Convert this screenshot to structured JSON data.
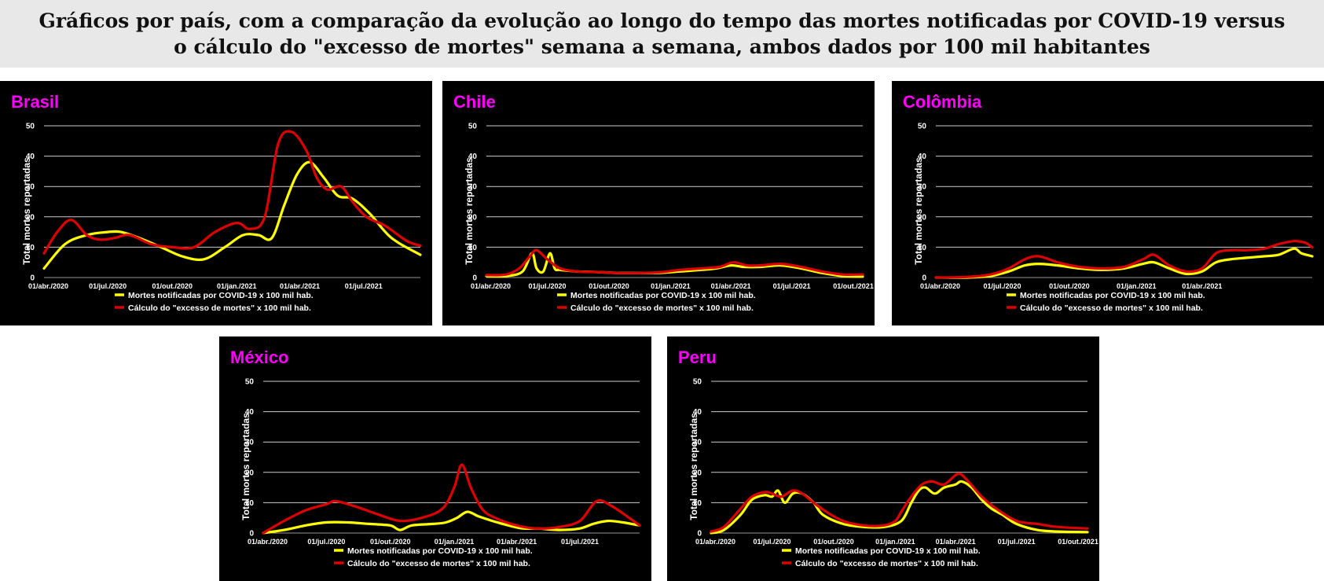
{
  "page": {
    "title_line1": "Gráficos por país, com a comparação da evolução ao longo do tempo das mortes notificadas por COVID-19 versus",
    "title_line2": "o cálculo do \"excesso de mortes\" semana a semana, ambos dados por 100 mil habitantes"
  },
  "colors": {
    "background": "#000000",
    "country_label": "#ff00ff",
    "reported": "#ffff00",
    "excess": "#dd0000",
    "text": "#ffffff",
    "grid": "#cccccc"
  },
  "chart_data": [
    {
      "type": "line",
      "title": "Brasil",
      "ylabel": "Total mortes reportadas",
      "ylim": [
        0,
        50
      ],
      "yticks": [
        0,
        10,
        20,
        30,
        40,
        50
      ],
      "xlim": [
        "2020-04-01",
        "2021-09-20"
      ],
      "xticks": [
        {
          "date": "2020-04-01",
          "label": "01/abr./2020"
        },
        {
          "date": "2020-07-01",
          "label": "01/jul./2020"
        },
        {
          "date": "2020-10-01",
          "label": "01/out./2020"
        },
        {
          "date": "2021-01-01",
          "label": "01/jan./2021"
        },
        {
          "date": "2021-04-01",
          "label": "01/abr./2021"
        },
        {
          "date": "2021-07-01",
          "label": "01/jul./2021"
        }
      ],
      "legend_position": "bottom",
      "series": [
        {
          "name": "Mortes notificadas por COVID-19 x 100 mil hab.",
          "color": "#ffff00",
          "x": [
            "2020-04-01",
            "2020-05-01",
            "2020-06-01",
            "2020-07-01",
            "2020-07-20",
            "2020-08-15",
            "2020-09-15",
            "2020-10-15",
            "2020-11-15",
            "2020-12-15",
            "2021-01-10",
            "2021-02-01",
            "2021-02-20",
            "2021-03-10",
            "2021-03-28",
            "2021-04-15",
            "2021-05-05",
            "2021-05-25",
            "2021-06-15",
            "2021-07-10",
            "2021-08-10",
            "2021-09-20"
          ],
          "y": [
            3,
            11,
            14,
            15,
            15,
            13,
            10,
            7,
            6,
            10,
            14,
            14,
            13,
            24,
            34,
            38,
            33,
            27,
            26,
            21,
            13,
            7.5
          ]
        },
        {
          "name": "Cálculo do \"excesso de mortes\" x 100 mil hab.",
          "color": "#dd0000",
          "x": [
            "2020-04-01",
            "2020-04-20",
            "2020-05-10",
            "2020-06-01",
            "2020-06-20",
            "2020-07-10",
            "2020-08-01",
            "2020-09-01",
            "2020-10-01",
            "2020-11-01",
            "2020-12-01",
            "2021-01-01",
            "2021-01-20",
            "2021-02-10",
            "2021-03-01",
            "2021-03-20",
            "2021-04-10",
            "2021-04-25",
            "2021-05-10",
            "2021-05-30",
            "2021-06-15",
            "2021-07-05",
            "2021-08-01",
            "2021-09-01",
            "2021-09-20"
          ],
          "y": [
            8,
            15,
            19,
            14,
            12.5,
            13,
            14,
            11,
            10,
            10,
            15,
            18,
            16,
            20,
            44,
            48,
            42,
            33,
            29,
            30,
            25,
            20,
            17,
            12,
            10.5
          ]
        }
      ]
    },
    {
      "type": "line",
      "title": "Chile",
      "ylabel": "Total mortes reportadas",
      "ylim": [
        0,
        50
      ],
      "yticks": [
        0,
        10,
        20,
        30,
        40,
        50
      ],
      "xlim": [
        "2020-04-01",
        "2021-10-15"
      ],
      "xticks": [
        {
          "date": "2020-04-01",
          "label": "01/abr./2020"
        },
        {
          "date": "2020-07-01",
          "label": "01/jul./2020"
        },
        {
          "date": "2020-10-01",
          "label": "01/out./2020"
        },
        {
          "date": "2021-01-01",
          "label": "01/jan./2021"
        },
        {
          "date": "2021-04-01",
          "label": "01/abr./2021"
        },
        {
          "date": "2021-07-01",
          "label": "01/jul./2021"
        },
        {
          "date": "2021-10-01",
          "label": "01/out./2021"
        }
      ],
      "legend_position": "bottom",
      "series": [
        {
          "name": "Mortes notificadas por COVID-19 x 100 mil hab.",
          "color": "#ffff00",
          "x": [
            "2020-04-01",
            "2020-05-01",
            "2020-05-25",
            "2020-06-08",
            "2020-06-15",
            "2020-06-25",
            "2020-07-05",
            "2020-07-12",
            "2020-07-20",
            "2020-08-15",
            "2020-09-15",
            "2020-10-15",
            "2020-11-15",
            "2020-12-15",
            "2021-01-15",
            "2021-02-15",
            "2021-03-10",
            "2021-04-01",
            "2021-04-20",
            "2021-05-15",
            "2021-06-15",
            "2021-07-15",
            "2021-08-15",
            "2021-09-15",
            "2021-10-15"
          ],
          "y": [
            0.5,
            0.5,
            2,
            8,
            3,
            2,
            8,
            3,
            2.5,
            2,
            1.8,
            1.5,
            1.5,
            1.5,
            2,
            2.5,
            3,
            4,
            3.5,
            3.5,
            4,
            3,
            1.5,
            0.5,
            0.3
          ]
        },
        {
          "name": "Cálculo do \"excesso de mortes\" x 100 mil hab.",
          "color": "#dd0000",
          "x": [
            "2020-04-01",
            "2020-05-01",
            "2020-05-20",
            "2020-06-05",
            "2020-06-15",
            "2020-07-01",
            "2020-07-20",
            "2020-08-15",
            "2020-09-15",
            "2020-10-15",
            "2020-11-15",
            "2020-12-15",
            "2021-01-15",
            "2021-02-15",
            "2021-03-15",
            "2021-04-05",
            "2021-04-25",
            "2021-05-15",
            "2021-06-15",
            "2021-07-15",
            "2021-08-15",
            "2021-09-15",
            "2021-10-15"
          ],
          "y": [
            0.8,
            1,
            3,
            7,
            9,
            6,
            3,
            2,
            1.8,
            1.5,
            1.5,
            1.7,
            2.5,
            3,
            3.5,
            5,
            4,
            4,
            4.5,
            3.5,
            2,
            1,
            1
          ]
        }
      ]
    },
    {
      "type": "line",
      "title": "Colômbia",
      "ylabel": "Total mortes reportadas",
      "ylim": [
        0,
        50
      ],
      "yticks": [
        0,
        10,
        20,
        30,
        40,
        50
      ],
      "xlim": [
        "2020-04-01",
        "2021-08-30"
      ],
      "xticks": [
        {
          "date": "2020-04-01",
          "label": "01/abr./2020"
        },
        {
          "date": "2020-07-01",
          "label": "01/jul./2020"
        },
        {
          "date": "2020-10-01",
          "label": "01/out./2020"
        },
        {
          "date": "2021-01-01",
          "label": "01/jan./2021"
        },
        {
          "date": "2021-04-01",
          "label": "01/abr./2021"
        }
      ],
      "legend_position": "bottom",
      "series": [
        {
          "name": "Mortes notificadas por COVID-19 x 100 mil hab.",
          "color": "#ffff00",
          "x": [
            "2020-04-01",
            "2020-05-15",
            "2020-06-15",
            "2020-07-10",
            "2020-08-01",
            "2020-08-20",
            "2020-09-15",
            "2020-10-15",
            "2020-11-15",
            "2020-12-15",
            "2021-01-10",
            "2021-01-25",
            "2021-02-15",
            "2021-03-10",
            "2021-04-01",
            "2021-04-20",
            "2021-05-10",
            "2021-06-01",
            "2021-06-25",
            "2021-07-15",
            "2021-08-05",
            "2021-08-15",
            "2021-08-30"
          ],
          "y": [
            0,
            0,
            0.5,
            2,
            4,
            4.5,
            4,
            3,
            2.5,
            3,
            4.5,
            5,
            3,
            1.2,
            2,
            5,
            6,
            6.5,
            7,
            7.5,
            9.5,
            8,
            7
          ]
        },
        {
          "name": "Cálculo do \"excesso de mortes\" x 100 mil hab.",
          "color": "#dd0000",
          "x": [
            "2020-04-01",
            "2020-05-15",
            "2020-06-15",
            "2020-07-10",
            "2020-08-01",
            "2020-08-20",
            "2020-09-15",
            "2020-10-15",
            "2020-11-15",
            "2020-12-15",
            "2021-01-10",
            "2021-01-25",
            "2021-02-15",
            "2021-03-10",
            "2021-04-01",
            "2021-04-20",
            "2021-05-10",
            "2021-06-01",
            "2021-06-25",
            "2021-07-15",
            "2021-08-05",
            "2021-08-20",
            "2021-08-30"
          ],
          "y": [
            0,
            0.2,
            1,
            3,
            6,
            7,
            5,
            3.5,
            3,
            3.5,
            6,
            7.5,
            4,
            2,
            3,
            8,
            9,
            9,
            9.5,
            11,
            12,
            11.5,
            10
          ]
        }
      ]
    },
    {
      "type": "line",
      "title": "México",
      "ylabel": "Total mortes reportadas",
      "ylim": [
        0,
        50
      ],
      "yticks": [
        0,
        10,
        20,
        30,
        40,
        50
      ],
      "xlim": [
        "2020-04-01",
        "2021-09-25"
      ],
      "xticks": [
        {
          "date": "2020-04-01",
          "label": "01/abr./2020"
        },
        {
          "date": "2020-07-01",
          "label": "01/jul./2020"
        },
        {
          "date": "2020-10-01",
          "label": "01/out./2020"
        },
        {
          "date": "2021-01-01",
          "label": "01/jan./2021"
        },
        {
          "date": "2021-04-01",
          "label": "01/abr./2021"
        },
        {
          "date": "2021-07-01",
          "label": "01/jul./2021"
        }
      ],
      "legend_position": "bottom",
      "series": [
        {
          "name": "Mortes notificadas por COVID-19 x 100 mil hab.",
          "color": "#ffff00",
          "x": [
            "2020-04-01",
            "2020-05-01",
            "2020-06-01",
            "2020-07-01",
            "2020-08-01",
            "2020-09-01",
            "2020-10-01",
            "2020-10-15",
            "2020-11-01",
            "2020-12-01",
            "2020-12-20",
            "2021-01-05",
            "2021-01-20",
            "2021-02-05",
            "2021-02-25",
            "2021-03-20",
            "2021-04-10",
            "2021-05-01",
            "2021-06-01",
            "2021-07-01",
            "2021-07-20",
            "2021-08-10",
            "2021-09-01",
            "2021-09-25"
          ],
          "y": [
            0,
            1,
            2.5,
            3.5,
            3.5,
            3,
            2.5,
            1,
            2.5,
            3,
            3.5,
            5,
            7,
            5.5,
            4,
            2.5,
            1.5,
            1.5,
            1,
            1.5,
            3,
            4,
            3.5,
            2.5
          ]
        },
        {
          "name": "Cálculo do \"excesso de mortes\" x 100 mil hab.",
          "color": "#dd0000",
          "x": [
            "2020-04-01",
            "2020-05-01",
            "2020-06-01",
            "2020-07-01",
            "2020-07-15",
            "2020-08-15",
            "2020-09-15",
            "2020-10-15",
            "2020-11-15",
            "2020-12-15",
            "2021-01-01",
            "2021-01-12",
            "2021-01-25",
            "2021-02-10",
            "2021-03-01",
            "2021-04-01",
            "2021-05-01",
            "2021-06-01",
            "2021-07-01",
            "2021-07-25",
            "2021-08-15",
            "2021-09-10",
            "2021-09-25"
          ],
          "y": [
            0,
            4,
            7.5,
            9.5,
            10.5,
            8.5,
            6,
            4,
            5,
            8,
            15,
            22.5,
            15,
            8,
            5,
            2.5,
            1.5,
            2,
            4,
            10.5,
            9,
            5,
            2.5
          ]
        }
      ]
    },
    {
      "type": "line",
      "title": "Peru",
      "ylabel": "Total mortes reportadas",
      "ylim": [
        0,
        50
      ],
      "yticks": [
        0,
        10,
        20,
        30,
        40,
        50
      ],
      "xlim": [
        "2020-04-01",
        "2021-10-15"
      ],
      "xticks": [
        {
          "date": "2020-04-01",
          "label": "01/abr./2020"
        },
        {
          "date": "2020-07-01",
          "label": "01/jul./2020"
        },
        {
          "date": "2020-10-01",
          "label": "01/out./2020"
        },
        {
          "date": "2021-01-01",
          "label": "01/jan./2021"
        },
        {
          "date": "2021-04-01",
          "label": "01/abr./2021"
        },
        {
          "date": "2021-07-01",
          "label": "01/jul./2021"
        },
        {
          "date": "2021-10-01",
          "label": "01/out./2021"
        }
      ],
      "legend_position": "bottom",
      "series": [
        {
          "name": "Mortes notificadas por COVID-19 x 100 mil hab.",
          "color": "#ffff00",
          "x": [
            "2020-04-01",
            "2020-04-20",
            "2020-05-15",
            "2020-06-01",
            "2020-06-20",
            "2020-07-01",
            "2020-07-10",
            "2020-07-20",
            "2020-08-01",
            "2020-08-15",
            "2020-09-01",
            "2020-09-15",
            "2020-10-15",
            "2020-11-15",
            "2020-12-15",
            "2021-01-10",
            "2021-01-25",
            "2021-02-05",
            "2021-02-15",
            "2021-03-01",
            "2021-03-15",
            "2021-04-01",
            "2021-04-10",
            "2021-04-25",
            "2021-05-10",
            "2021-05-25",
            "2021-06-10",
            "2021-07-01",
            "2021-08-01",
            "2021-09-01",
            "2021-10-15"
          ],
          "y": [
            0,
            1,
            6,
            11,
            12.5,
            12,
            14,
            10,
            13,
            13,
            10,
            6,
            3,
            2,
            2,
            4,
            10,
            14,
            15,
            13,
            15,
            16,
            17,
            15,
            11,
            8,
            6,
            3,
            1,
            0.5,
            0.3
          ]
        },
        {
          "name": "Cálculo do \"excesso de mortes\" x 100 mil hab.",
          "color": "#dd0000",
          "x": [
            "2020-04-01",
            "2020-04-20",
            "2020-05-15",
            "2020-06-01",
            "2020-06-20",
            "2020-07-01",
            "2020-07-15",
            "2020-08-01",
            "2020-08-15",
            "2020-09-01",
            "2020-09-20",
            "2020-10-15",
            "2020-11-15",
            "2020-12-15",
            "2021-01-01",
            "2021-01-10",
            "2021-01-25",
            "2021-02-10",
            "2021-02-25",
            "2021-03-15",
            "2021-04-05",
            "2021-04-20",
            "2021-05-10",
            "2021-06-01",
            "2021-07-01",
            "2021-08-01",
            "2021-09-01",
            "2021-10-15"
          ],
          "y": [
            0.5,
            2,
            8,
            12,
            13.5,
            13,
            12,
            14,
            13,
            10,
            7,
            4,
            2.5,
            2.5,
            4,
            7,
            12,
            16,
            17,
            16,
            19.5,
            17,
            12,
            8,
            4,
            3,
            2,
            1.5
          ]
        }
      ]
    }
  ]
}
